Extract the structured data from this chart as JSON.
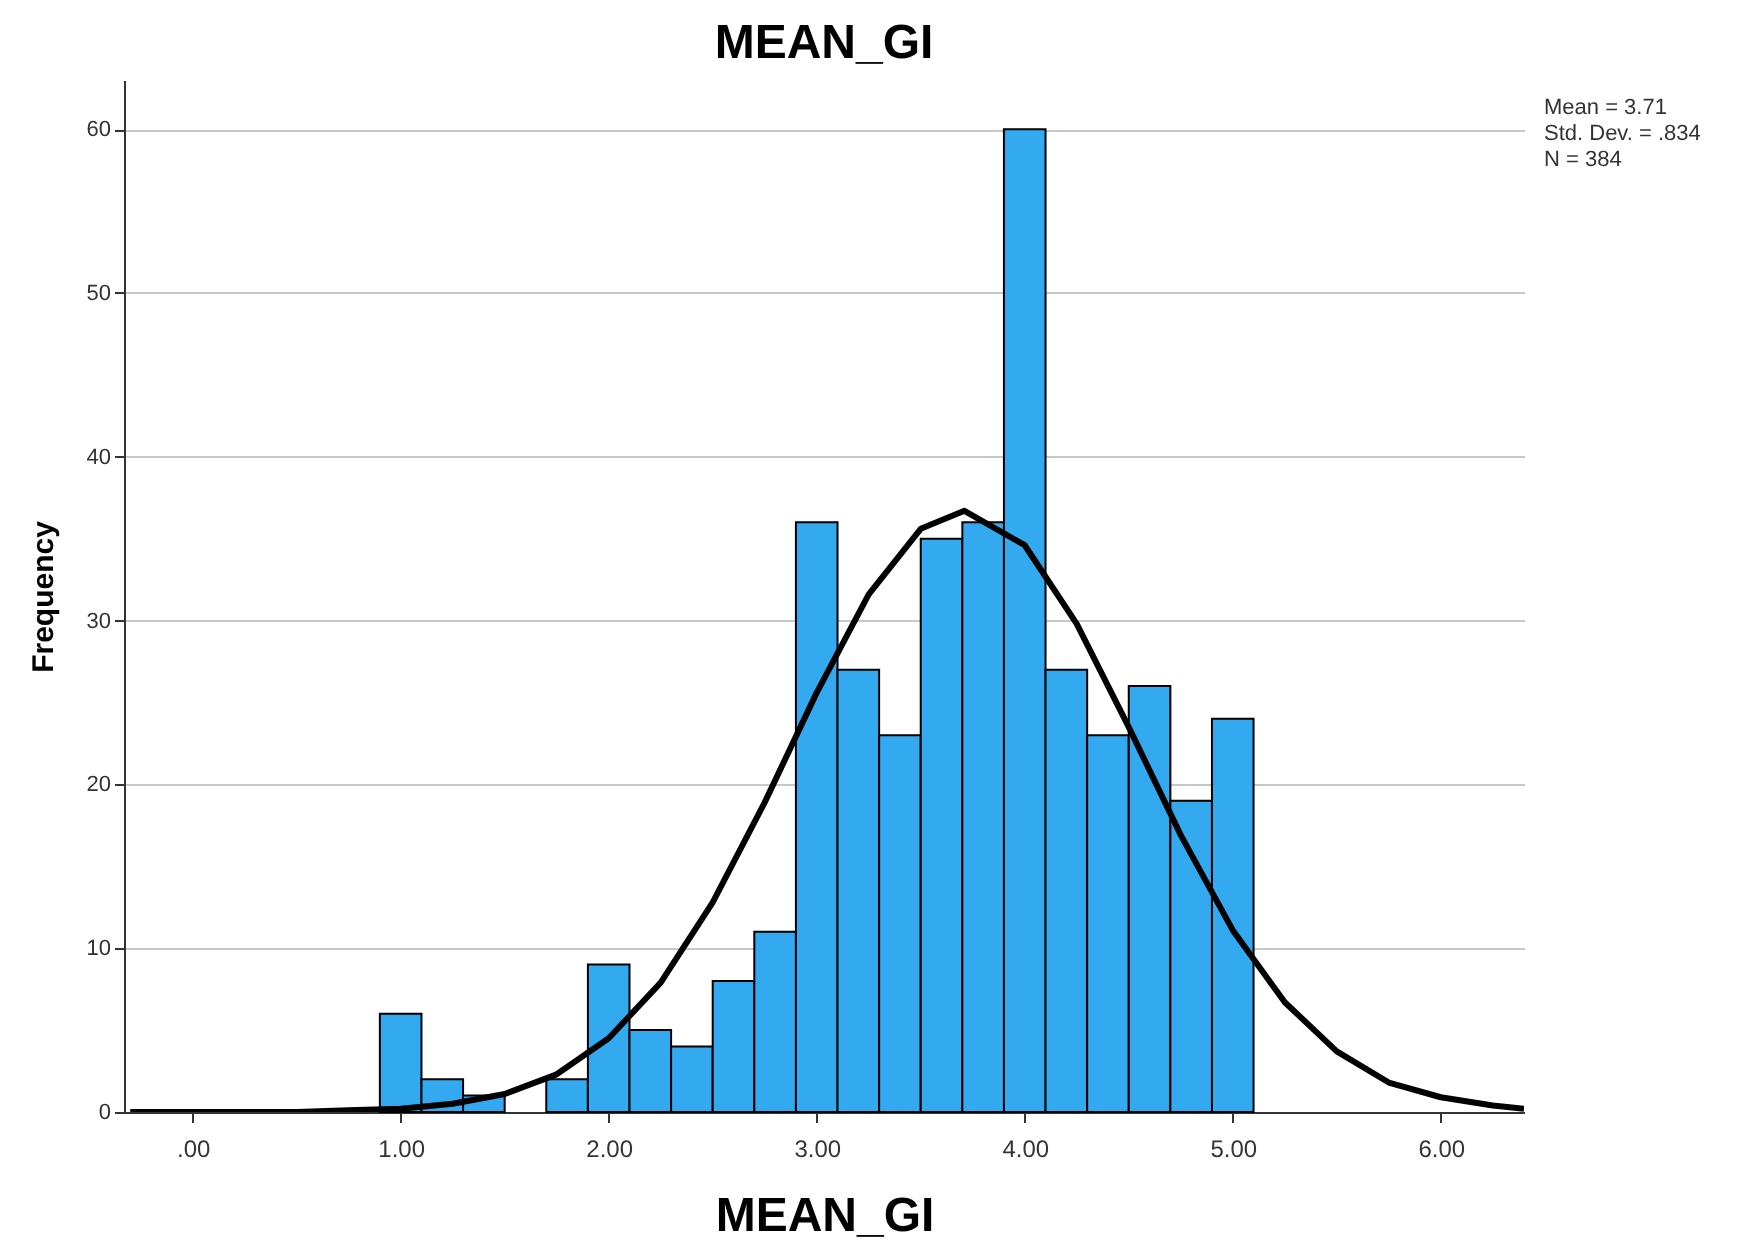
{
  "chart_data": {
    "type": "histogram",
    "title": "MEAN_GI",
    "xlabel": "MEAN_GI",
    "ylabel": "Frequency",
    "annotations": [
      "Mean = 3.71",
      "Std. Dev. = .834",
      "N = 384"
    ],
    "bins": [
      0.9,
      1.1,
      1.3,
      1.5,
      1.7,
      1.9,
      2.1,
      2.3,
      2.5,
      2.7,
      2.9,
      3.1,
      3.3,
      3.5,
      3.7,
      3.9,
      4.1,
      4.3,
      4.5,
      4.7,
      4.9,
      5.1
    ],
    "series": [
      {
        "color": "#33a9f0",
        "values": [
          6,
          2,
          1,
          0,
          2,
          9,
          5,
          4,
          8,
          11,
          36,
          27,
          23,
          35,
          36,
          60,
          27,
          23,
          26,
          19,
          24
        ]
      },
      {
        "type": "line",
        "color": "#000000",
        "x": [
          -0.3,
          0,
          0.5,
          0.75,
          1,
          1.25,
          1.5,
          1.75,
          2,
          2.25,
          2.5,
          2.75,
          3,
          3.25,
          3.5,
          3.71,
          4,
          4.25,
          4.5,
          4.75,
          5,
          5.25,
          5.5,
          5.75,
          6,
          6.25,
          6.4
        ],
        "values": [
          0,
          0,
          0,
          0.1,
          0.2,
          0.5,
          1.1,
          2.3,
          4.5,
          7.9,
          12.8,
          18.9,
          25.6,
          31.6,
          35.6,
          36.7,
          34.6,
          29.8,
          23.5,
          16.9,
          11.1,
          6.7,
          3.7,
          1.8,
          0.9,
          0.4,
          0.2
        ]
      }
    ],
    "xlim": [
      -0.33,
      6.4
    ],
    "xticks": [
      {
        "value": 0,
        "label": ".00"
      },
      {
        "value": 1,
        "label": "1.00"
      },
      {
        "value": 2,
        "label": "2.00"
      },
      {
        "value": 3,
        "label": "3.00"
      },
      {
        "value": 4,
        "label": "4.00"
      },
      {
        "value": 5,
        "label": "5.00"
      },
      {
        "value": 6,
        "label": "6.00"
      }
    ],
    "ylim": [
      0,
      63
    ],
    "yticks": [
      0,
      10,
      20,
      30,
      40,
      50,
      60
    ],
    "grid": "y"
  }
}
